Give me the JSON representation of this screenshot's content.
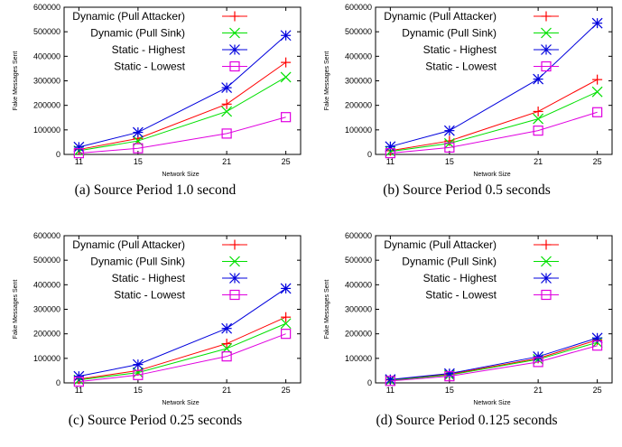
{
  "colors": {
    "dynamic_pull_attacker": "#ff0000",
    "dynamic_pull_sink": "#00e000",
    "static_highest": "#0000dd",
    "static_lowest": "#e000e0"
  },
  "chart_data": [
    {
      "type": "line",
      "caption": "(a) Source Period 1.0 second",
      "xlabel": "Network Size",
      "ylabel": "Fake Messages Sent",
      "categories": [
        "11",
        "15",
        "21",
        "25"
      ],
      "x": [
        11,
        15,
        21,
        25
      ],
      "ylim": [
        0,
        600000
      ],
      "yticks": [
        "0",
        "100000",
        "200000",
        "300000",
        "400000",
        "500000",
        "600000"
      ],
      "legend_position": "top-left",
      "series": [
        {
          "name": "Dynamic (Pull Attacker)",
          "marker": "plus",
          "values": [
            20000,
            65000,
            205000,
            375000
          ]
        },
        {
          "name": "Dynamic (Pull Sink)",
          "marker": "cross",
          "values": [
            15000,
            55000,
            175000,
            315000
          ]
        },
        {
          "name": "Static - Highest",
          "marker": "star",
          "values": [
            30000,
            90000,
            272000,
            485000
          ]
        },
        {
          "name": "Static - Lowest",
          "marker": "square",
          "values": [
            5000,
            25000,
            85000,
            152000
          ]
        }
      ]
    },
    {
      "type": "line",
      "caption": "(b) Source Period 0.5 seconds",
      "xlabel": "Network Size",
      "ylabel": "Fake Messages Sent",
      "categories": [
        "11",
        "15",
        "21",
        "25"
      ],
      "x": [
        11,
        15,
        21,
        25
      ],
      "ylim": [
        0,
        600000
      ],
      "yticks": [
        "0",
        "100000",
        "200000",
        "300000",
        "400000",
        "500000",
        "600000"
      ],
      "legend_position": "top-left",
      "series": [
        {
          "name": "Dynamic (Pull Attacker)",
          "marker": "plus",
          "values": [
            15000,
            55000,
            175000,
            305000
          ]
        },
        {
          "name": "Dynamic (Pull Sink)",
          "marker": "cross",
          "values": [
            12000,
            45000,
            145000,
            255000
          ]
        },
        {
          "name": "Static - Highest",
          "marker": "star",
          "values": [
            32000,
            97000,
            307000,
            535000
          ]
        },
        {
          "name": "Static - Lowest",
          "marker": "square",
          "values": [
            5000,
            28000,
            97000,
            172000
          ]
        }
      ]
    },
    {
      "type": "line",
      "caption": "(c) Source Period 0.25 seconds",
      "xlabel": "Network Size",
      "ylabel": "Fake Messages Sent",
      "categories": [
        "11",
        "15",
        "21",
        "25"
      ],
      "x": [
        11,
        15,
        21,
        25
      ],
      "ylim": [
        0,
        600000
      ],
      "yticks": [
        "0",
        "100000",
        "200000",
        "300000",
        "400000",
        "500000",
        "600000"
      ],
      "legend_position": "top-left",
      "series": [
        {
          "name": "Dynamic (Pull Attacker)",
          "marker": "plus",
          "values": [
            15000,
            50000,
            160000,
            268000
          ]
        },
        {
          "name": "Dynamic (Pull Sink)",
          "marker": "cross",
          "values": [
            12000,
            42000,
            140000,
            242000
          ]
        },
        {
          "name": "Static - Highest",
          "marker": "star",
          "values": [
            27000,
            75000,
            222000,
            385000
          ]
        },
        {
          "name": "Static - Lowest",
          "marker": "square",
          "values": [
            5000,
            32000,
            108000,
            200000
          ]
        }
      ]
    },
    {
      "type": "line",
      "caption": "(d) Source Period 0.125 seconds",
      "xlabel": "Network Size",
      "ylabel": "Fake Messages Sent",
      "categories": [
        "11",
        "15",
        "21",
        "25"
      ],
      "x": [
        11,
        15,
        21,
        25
      ],
      "ylim": [
        0,
        600000
      ],
      "yticks": [
        "0",
        "100000",
        "200000",
        "300000",
        "400000",
        "500000",
        "600000"
      ],
      "legend_position": "top-left",
      "series": [
        {
          "name": "Dynamic (Pull Attacker)",
          "marker": "plus",
          "values": [
            12000,
            35000,
            100000,
            175000
          ]
        },
        {
          "name": "Dynamic (Pull Sink)",
          "marker": "cross",
          "values": [
            10000,
            32000,
            96000,
            165000
          ]
        },
        {
          "name": "Static - Highest",
          "marker": "star",
          "values": [
            14000,
            38000,
            107000,
            183000
          ]
        },
        {
          "name": "Static - Lowest",
          "marker": "square",
          "values": [
            8000,
            27000,
            85000,
            152000
          ]
        }
      ]
    }
  ]
}
